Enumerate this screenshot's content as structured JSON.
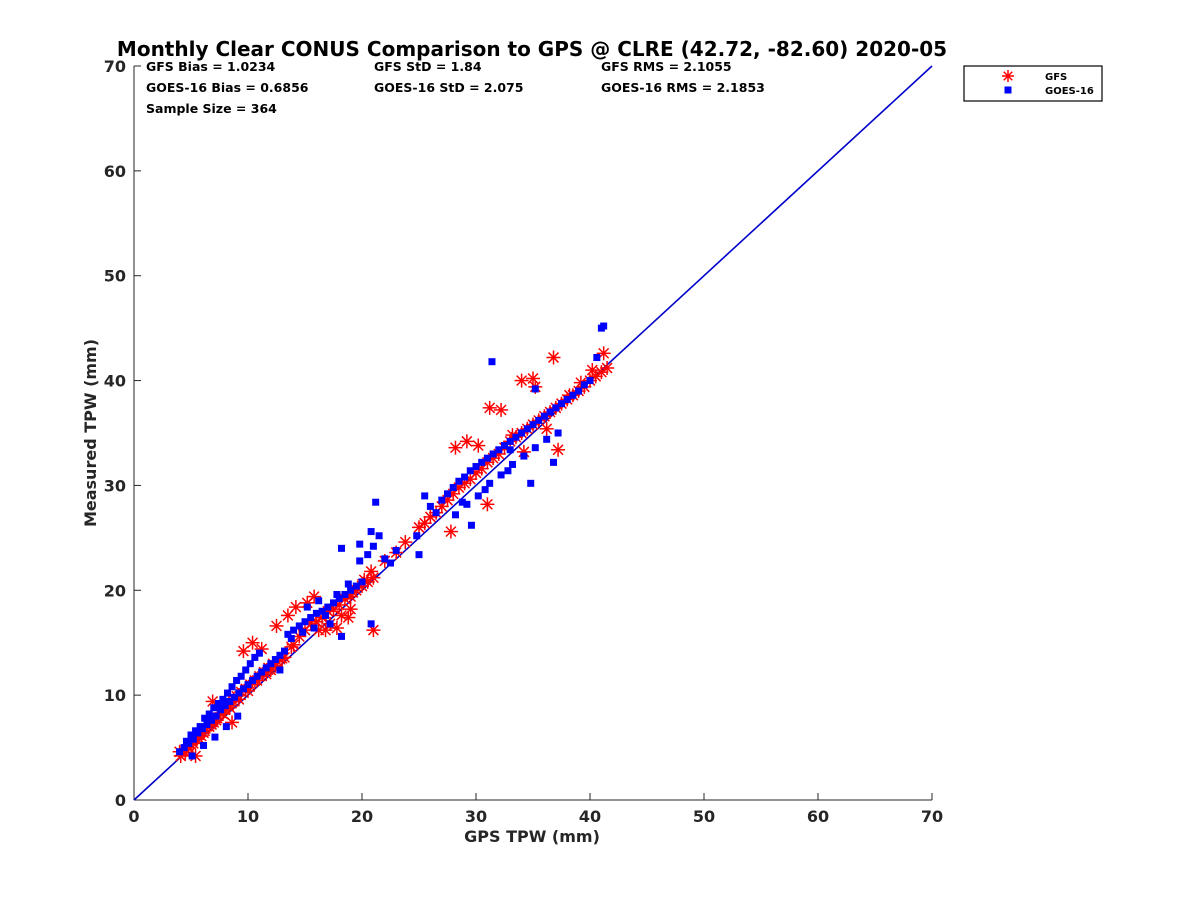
{
  "chart_data": {
    "type": "scatter",
    "title": "Monthly Clear CONUS Comparison to GPS @ CLRE (42.72, -82.60) 2020-05",
    "xlabel": "GPS TPW (mm)",
    "ylabel": "Measured TPW (mm)",
    "xlim": [
      0,
      70
    ],
    "ylim": [
      0,
      70
    ],
    "xticks": [
      "0",
      "10",
      "20",
      "30",
      "40",
      "50",
      "60",
      "70"
    ],
    "yticks": [
      "0",
      "10",
      "20",
      "30",
      "40",
      "50",
      "60",
      "70"
    ],
    "grid": false,
    "legend_position": "top-right",
    "stats": {
      "gfs_bias": "GFS Bias = 1.0234",
      "gfs_std": "GFS StD = 1.84",
      "gfs_rms": "GFS RMS = 2.1055",
      "goes_bias": "GOES-16 Bias = 0.6856",
      "goes_std": "GOES-16 StD = 2.075",
      "goes_rms": "GOES-16 RMS = 2.1853",
      "sample_size": "Sample Size = 364"
    },
    "reference_line": {
      "x": [
        0,
        70
      ],
      "y": [
        0,
        70
      ],
      "color": "#0000cc"
    },
    "series": [
      {
        "name": "GFS",
        "marker": "asterisk",
        "color": "#ff0000",
        "x": [
          4.1,
          4.5,
          4.8,
          5.2,
          5.5,
          5.9,
          6.2,
          6.6,
          7.0,
          7.3,
          7.6,
          8.0,
          8.3,
          8.7,
          9.0,
          9.4,
          9.8,
          10.2,
          10.6,
          11.0,
          11.4,
          11.8,
          12.2,
          12.6,
          13.0,
          4.6,
          5.0,
          5.6,
          6.1,
          6.8,
          7.2,
          7.8,
          8.4,
          9.2,
          10.0,
          10.8,
          11.6,
          12.4,
          13.2,
          14.0,
          14.5,
          15.0,
          15.5,
          16.0,
          16.5,
          17.0,
          17.5,
          18.0,
          18.5,
          19.0,
          19.5,
          20.0,
          20.5,
          21.0,
          22.0,
          23.0,
          23.8,
          14.2,
          15.2,
          16.2,
          17.2,
          18.2,
          19.2,
          20.2,
          12.5,
          13.5,
          17.8,
          19.0,
          20.8,
          25.0,
          25.5,
          26.0,
          26.5,
          27.0,
          27.5,
          28.0,
          28.5,
          29.0,
          29.5,
          30.0,
          30.5,
          31.0,
          31.5,
          32.0,
          32.5,
          33.0,
          33.5,
          34.0,
          34.5,
          35.0,
          35.5,
          36.0,
          36.5,
          37.0,
          37.5,
          38.0,
          38.5,
          39.0,
          39.5,
          40.0,
          40.5,
          41.0,
          41.5,
          28.2,
          29.2,
          30.2,
          31.2,
          32.2,
          33.2,
          34.2,
          35.2,
          36.2,
          37.2,
          38.2,
          39.2,
          40.2,
          41.2,
          27.8,
          31.0,
          36.8,
          34.0,
          35.0,
          4.0,
          5.4,
          6.9,
          8.6,
          9.6,
          10.4,
          11.2,
          12.0,
          13.8,
          15.8,
          16.8,
          18.8,
          21.0
        ],
        "y": [
          4.2,
          4.5,
          5.0,
          5.4,
          5.8,
          6.1,
          6.6,
          7.0,
          7.4,
          7.8,
          8.3,
          8.6,
          9.0,
          9.4,
          9.9,
          10.3,
          10.6,
          11.0,
          11.4,
          11.8,
          12.2,
          12.6,
          13.0,
          13.2,
          13.5,
          4.8,
          5.3,
          6.0,
          6.4,
          7.2,
          7.6,
          8.2,
          8.8,
          9.6,
          10.4,
          11.4,
          12.0,
          12.8,
          13.6,
          14.8,
          15.6,
          16.2,
          16.8,
          17.0,
          17.4,
          18.0,
          18.2,
          18.6,
          19.2,
          19.4,
          20.0,
          20.4,
          20.8,
          21.2,
          22.8,
          23.6,
          24.6,
          18.4,
          18.8,
          16.2,
          16.8,
          17.6,
          19.8,
          21.0,
          16.6,
          17.6,
          16.4,
          18.2,
          21.8,
          26.0,
          26.4,
          27.0,
          27.4,
          28.0,
          28.6,
          29.2,
          29.8,
          30.2,
          30.6,
          31.2,
          31.6,
          32.2,
          32.6,
          33.0,
          33.6,
          34.2,
          34.6,
          35.0,
          35.4,
          35.8,
          36.2,
          36.6,
          37.0,
          37.4,
          37.8,
          38.2,
          38.6,
          39.0,
          39.4,
          40.0,
          40.4,
          40.8,
          41.2,
          33.6,
          34.2,
          33.8,
          37.4,
          37.2,
          34.8,
          33.2,
          39.4,
          35.4,
          33.4,
          38.6,
          39.8,
          41.0,
          42.6,
          25.6,
          28.2,
          42.2,
          40.0,
          40.2,
          4.6,
          4.2,
          9.4,
          7.4,
          14.2,
          15.0,
          14.4,
          12.4,
          14.6,
          19.4,
          16.2,
          17.4,
          16.2
        ]
      },
      {
        "name": "GOES-16",
        "marker": "square",
        "color": "#0000ff",
        "x": [
          4.0,
          4.4,
          4.8,
          5.2,
          5.6,
          6.0,
          6.4,
          6.8,
          7.2,
          7.6,
          8.0,
          8.4,
          8.8,
          9.2,
          9.6,
          10.0,
          10.4,
          10.8,
          11.2,
          11.6,
          12.0,
          12.4,
          12.8,
          13.2,
          4.6,
          5.0,
          5.4,
          5.8,
          6.2,
          6.6,
          7.0,
          7.4,
          7.8,
          8.2,
          8.6,
          9.0,
          9.4,
          9.8,
          10.2,
          10.6,
          11.0,
          5.1,
          6.1,
          7.1,
          8.1,
          9.1,
          13.5,
          14.0,
          14.5,
          15.0,
          15.5,
          16.0,
          16.5,
          17.0,
          17.5,
          18.0,
          18.5,
          19.0,
          19.5,
          20.0,
          13.8,
          14.8,
          15.8,
          16.8,
          17.8,
          18.8,
          19.8,
          20.8,
          15.2,
          16.2,
          17.2,
          18.2,
          12.8,
          20.5,
          21.0,
          21.5,
          22.0,
          22.5,
          23.0,
          18.2,
          19.8,
          21.2,
          20.8,
          25.0,
          25.5,
          26.0,
          26.5,
          27.0,
          27.5,
          28.0,
          28.5,
          29.0,
          29.5,
          30.0,
          30.5,
          31.0,
          31.5,
          32.0,
          32.5,
          33.0,
          33.5,
          34.0,
          34.5,
          35.0,
          35.5,
          36.0,
          36.5,
          37.0,
          37.5,
          38.0,
          38.5,
          39.0,
          39.5,
          40.0,
          28.2,
          29.2,
          30.2,
          31.2,
          32.2,
          33.2,
          34.2,
          35.2,
          36.2,
          37.2,
          28.8,
          30.8,
          32.8,
          34.8,
          36.8,
          31.4,
          33.0,
          35.2,
          40.6,
          41.0,
          41.2,
          29.6,
          24.8
        ],
        "y": [
          4.6,
          5.0,
          5.4,
          5.8,
          6.4,
          6.8,
          7.2,
          7.6,
          8.0,
          8.6,
          9.0,
          9.4,
          9.8,
          10.2,
          10.6,
          11.0,
          11.4,
          11.8,
          12.2,
          12.6,
          13.0,
          13.4,
          13.8,
          14.2,
          5.6,
          6.2,
          6.6,
          7.0,
          7.8,
          8.2,
          8.8,
          9.2,
          9.6,
          10.2,
          10.8,
          11.4,
          11.8,
          12.4,
          13.0,
          13.6,
          14.0,
          4.2,
          5.2,
          6.0,
          7.0,
          8.0,
          15.8,
          16.2,
          16.6,
          17.0,
          17.4,
          17.8,
          18.0,
          18.4,
          18.8,
          19.2,
          19.6,
          20.0,
          20.4,
          20.8,
          15.4,
          16.0,
          16.4,
          17.6,
          19.6,
          20.6,
          24.4,
          25.6,
          18.4,
          19.0,
          16.8,
          15.6,
          12.4,
          23.4,
          24.2,
          25.2,
          23.0,
          22.6,
          23.8,
          24.0,
          22.8,
          28.4,
          16.8,
          23.4,
          29.0,
          28.0,
          27.4,
          28.6,
          29.2,
          29.8,
          30.4,
          30.8,
          31.4,
          31.8,
          32.2,
          32.6,
          33.0,
          33.4,
          33.8,
          34.2,
          34.6,
          35.0,
          35.4,
          35.8,
          36.2,
          36.6,
          37.0,
          37.4,
          37.8,
          38.2,
          38.6,
          39.0,
          39.6,
          40.0,
          27.2,
          28.2,
          29.0,
          30.2,
          31.0,
          32.0,
          32.8,
          33.6,
          34.4,
          35.0,
          28.4,
          29.6,
          31.4,
          30.2,
          32.2,
          41.8,
          33.4,
          39.2,
          42.2,
          45.0,
          45.2,
          26.2,
          25.2
        ]
      }
    ]
  }
}
